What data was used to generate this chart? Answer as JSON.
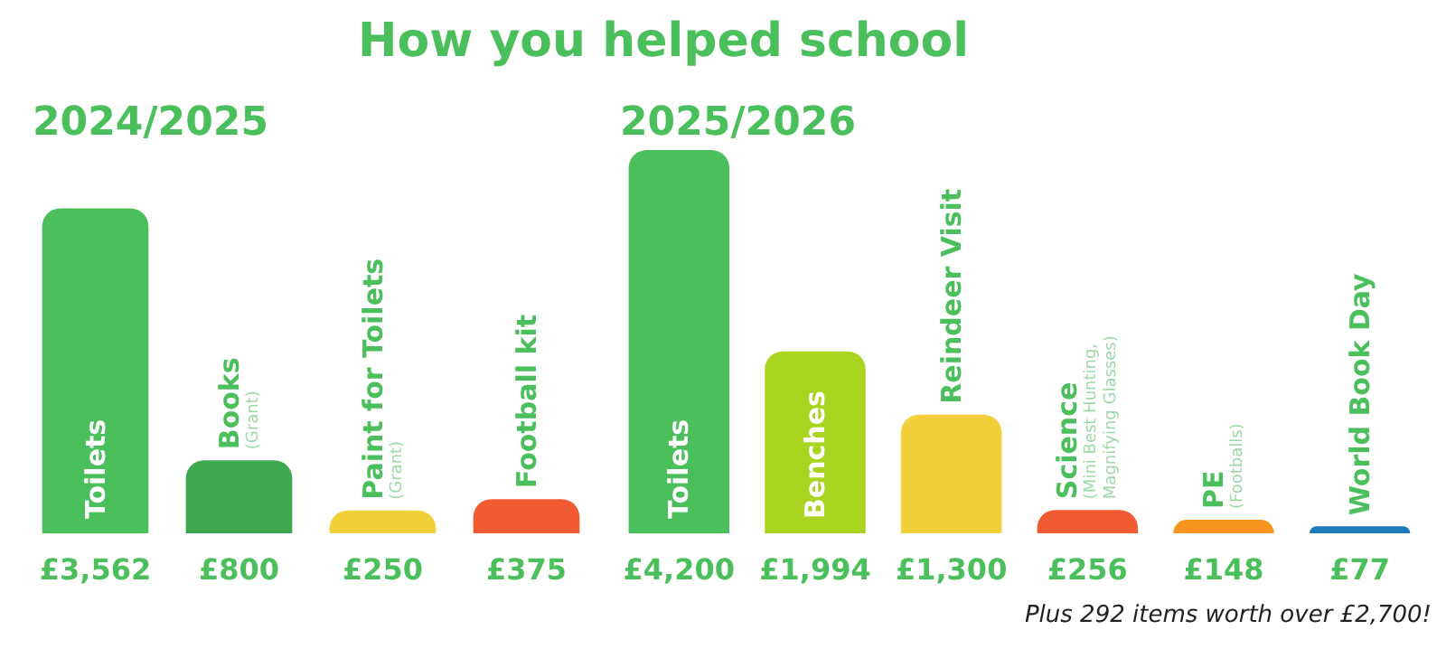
{
  "chart_data": [
    {
      "type": "bar",
      "title": "How you helped school",
      "subtitle": "2024/2025",
      "categories": [
        "Toilets",
        "Books\n(Grant)",
        "Paint for Toilets\n(Grant)",
        "Football kit"
      ],
      "values": [
        3562,
        800,
        250,
        375
      ],
      "colors": [
        "#4cbf5d",
        "#3da84e",
        "#f2d03b",
        "#f25a32"
      ],
      "value_labels": [
        "£3,562",
        "£800",
        "£250",
        "£375"
      ]
    },
    {
      "type": "bar",
      "title": "2025/2026",
      "categories": [
        "Toilets",
        "Benches",
        "Reindeer Visit",
        "Science\n(Mini Best Hunting,\nMagnifying Glasses)",
        "PE\n(Footballs)",
        "World Book Day"
      ],
      "values": [
        4200,
        1994,
        1300,
        256,
        148,
        77
      ],
      "colors": [
        "#4cbf5d",
        "#a9d41f",
        "#f2d03b",
        "#f25a32",
        "#f7941d",
        "#1b7bbd"
      ],
      "value_labels": [
        "£4,200",
        "£1,994",
        "£1,300",
        "£256",
        "£148",
        "£77"
      ],
      "annotations": [
        "Plus 292 items worth over £2,700!"
      ]
    }
  ]
}
